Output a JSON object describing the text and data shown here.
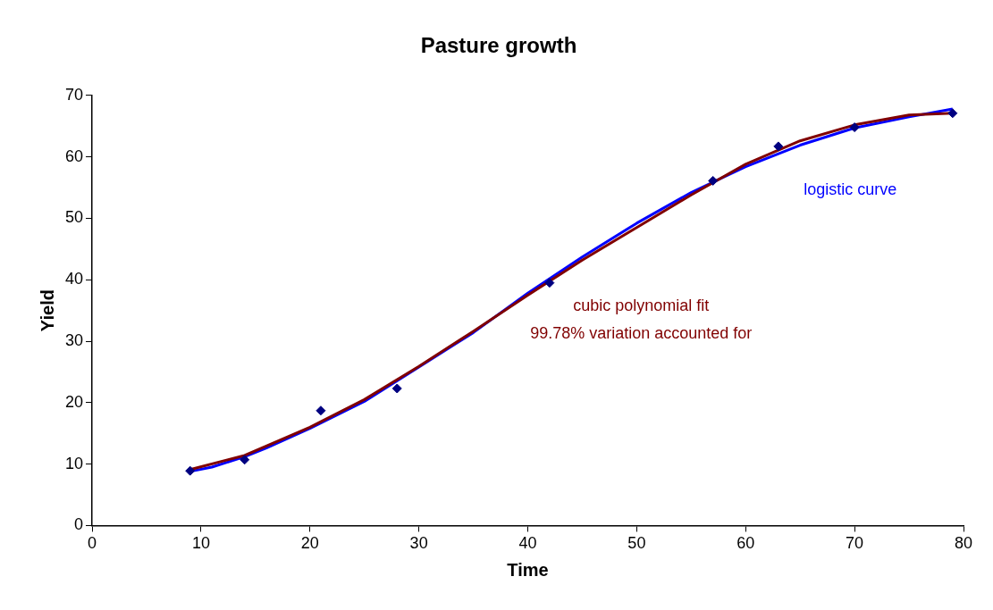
{
  "chart_data": {
    "type": "scatter",
    "title": "Pasture growth",
    "xlabel": "Time",
    "ylabel": "Yield",
    "xlim": [
      0,
      80
    ],
    "xticks": [
      0,
      10,
      20,
      30,
      40,
      50,
      60,
      70,
      80
    ],
    "ylim": [
      0,
      70
    ],
    "yticks": [
      0,
      10,
      20,
      30,
      40,
      50,
      60,
      70
    ],
    "grid": false,
    "legend": false,
    "series": [
      {
        "marker": "diamond",
        "color": "#000080",
        "x": [
          9,
          14,
          21,
          28,
          42,
          57,
          63,
          70,
          79
        ],
        "values": [
          8.9,
          10.7,
          18.7,
          22.3,
          39.5,
          56.1,
          61.7,
          64.8,
          67.1
        ]
      },
      {
        "type": "line",
        "marker": "none",
        "color": "#0000ff",
        "x": [
          9,
          11,
          14,
          16,
          20,
          25,
          30,
          35,
          40,
          45,
          50,
          55,
          60,
          65,
          70,
          75,
          79
        ],
        "values": [
          8.8,
          9.5,
          11.2,
          12.6,
          15.8,
          20.2,
          25.8,
          31.4,
          37.8,
          43.7,
          49.2,
          54.2,
          58.4,
          61.9,
          64.7,
          66.5,
          67.8
        ]
      },
      {
        "type": "line",
        "marker": "none",
        "color": "#800000",
        "x": [
          9,
          14,
          20,
          25,
          30,
          35,
          40,
          45,
          50,
          55,
          60,
          65,
          70,
          75,
          79
        ],
        "values": [
          9.1,
          11.4,
          16,
          20.5,
          25.9,
          31.6,
          37.5,
          43.2,
          48.5,
          53.8,
          58.8,
          62.6,
          65.2,
          66.8,
          67.1
        ]
      }
    ],
    "annotations": [
      "logistic curve",
      "cubic polynomial fit",
      "99.78% variation accounted for"
    ]
  }
}
